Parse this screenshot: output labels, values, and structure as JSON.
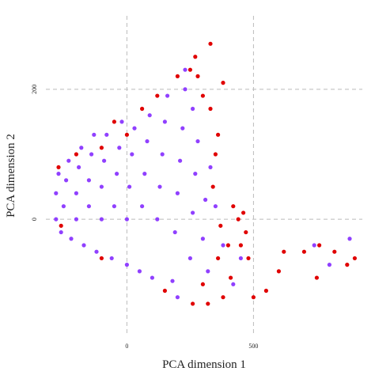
{
  "chart_data": {
    "type": "scatter",
    "x_label": "PCA dimension 1",
    "y_label": "PCA dimension 2",
    "xlim": [
      -320,
      930
    ],
    "ylim": [
      -180,
      313
    ],
    "xticks": [
      0,
      500
    ],
    "yticks": [
      0,
      200
    ],
    "grid": true,
    "series": [
      {
        "color": "#e00000",
        "x": [
          330,
          270,
          250,
          380,
          400,
          450,
          460,
          480,
          500,
          550,
          600,
          620,
          700,
          750,
          760,
          820,
          870,
          900,
          360,
          330,
          300,
          340,
          420,
          410,
          120,
          60,
          0,
          -100,
          -200,
          -270,
          -260,
          -100,
          150,
          260,
          300,
          350,
          370,
          320,
          360,
          280,
          200,
          -50,
          440,
          470,
          380
        ],
        "values": [
          270,
          250,
          230,
          210,
          -40,
          -40,
          10,
          -60,
          -120,
          -110,
          -80,
          -50,
          -50,
          -90,
          -40,
          -50,
          -70,
          -60,
          130,
          170,
          190,
          50,
          20,
          -90,
          190,
          170,
          130,
          110,
          100,
          80,
          -10,
          -60,
          -110,
          -130,
          -100,
          100,
          -10,
          -130,
          -60,
          220,
          220,
          150,
          0,
          -20,
          -120
        ]
      },
      {
        "color": "#9040ff",
        "x": [
          -280,
          -280,
          -270,
          -260,
          -250,
          -240,
          -230,
          -220,
          -200,
          -200,
          -190,
          -180,
          -170,
          -150,
          -150,
          -140,
          -130,
          -120,
          -100,
          -100,
          -90,
          -80,
          -60,
          -50,
          -40,
          -30,
          -20,
          0,
          0,
          10,
          20,
          30,
          50,
          60,
          70,
          80,
          90,
          100,
          120,
          130,
          140,
          150,
          160,
          180,
          190,
          200,
          210,
          220,
          230,
          250,
          260,
          270,
          280,
          300,
          310,
          320,
          330,
          350,
          380,
          420,
          450,
          740,
          800,
          880,
          230,
          200,
          260
        ],
        "values": [
          0,
          40,
          70,
          -20,
          20,
          60,
          90,
          -30,
          0,
          40,
          80,
          110,
          -40,
          20,
          60,
          100,
          130,
          -50,
          0,
          50,
          90,
          130,
          -60,
          20,
          70,
          110,
          150,
          -70,
          0,
          50,
          100,
          140,
          -80,
          20,
          70,
          120,
          160,
          -90,
          0,
          50,
          100,
          150,
          190,
          -95,
          -20,
          40,
          90,
          140,
          200,
          -60,
          10,
          70,
          120,
          -30,
          30,
          -80,
          80,
          20,
          -40,
          -100,
          -60,
          -40,
          -70,
          -30,
          230,
          -120,
          170
        ]
      }
    ]
  }
}
